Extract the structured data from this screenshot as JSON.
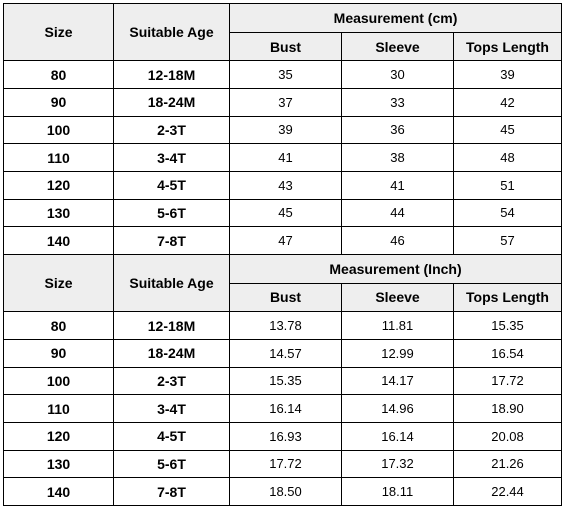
{
  "header": {
    "size": "Size",
    "suitable_age": "Suitable Age",
    "bust": "Bust",
    "sleeve": "Sleeve",
    "tops_length": "Tops Length"
  },
  "tables": [
    {
      "group_title": "Measurement (cm)",
      "rows": [
        {
          "size": "80",
          "age": "12-18M",
          "bust": "35",
          "sleeve": "30",
          "tops_length": "39"
        },
        {
          "size": "90",
          "age": "18-24M",
          "bust": "37",
          "sleeve": "33",
          "tops_length": "42"
        },
        {
          "size": "100",
          "age": "2-3T",
          "bust": "39",
          "sleeve": "36",
          "tops_length": "45"
        },
        {
          "size": "110",
          "age": "3-4T",
          "bust": "41",
          "sleeve": "38",
          "tops_length": "48"
        },
        {
          "size": "120",
          "age": "4-5T",
          "bust": "43",
          "sleeve": "41",
          "tops_length": "51"
        },
        {
          "size": "130",
          "age": "5-6T",
          "bust": "45",
          "sleeve": "44",
          "tops_length": "54"
        },
        {
          "size": "140",
          "age": "7-8T",
          "bust": "47",
          "sleeve": "46",
          "tops_length": "57"
        }
      ]
    },
    {
      "group_title": "Measurement (Inch)",
      "rows": [
        {
          "size": "80",
          "age": "12-18M",
          "bust": "13.78",
          "sleeve": "11.81",
          "tops_length": "15.35"
        },
        {
          "size": "90",
          "age": "18-24M",
          "bust": "14.57",
          "sleeve": "12.99",
          "tops_length": "16.54"
        },
        {
          "size": "100",
          "age": "2-3T",
          "bust": "15.35",
          "sleeve": "14.17",
          "tops_length": "17.72"
        },
        {
          "size": "110",
          "age": "3-4T",
          "bust": "16.14",
          "sleeve": "14.96",
          "tops_length": "18.90"
        },
        {
          "size": "120",
          "age": "4-5T",
          "bust": "16.93",
          "sleeve": "16.14",
          "tops_length": "20.08"
        },
        {
          "size": "130",
          "age": "5-6T",
          "bust": "17.72",
          "sleeve": "17.32",
          "tops_length": "21.26"
        },
        {
          "size": "140",
          "age": "7-8T",
          "bust": "18.50",
          "sleeve": "18.11",
          "tops_length": "22.44"
        }
      ]
    }
  ],
  "colors": {
    "header_bg": "#eeeeee",
    "border": "#000000",
    "text": "#000000"
  }
}
